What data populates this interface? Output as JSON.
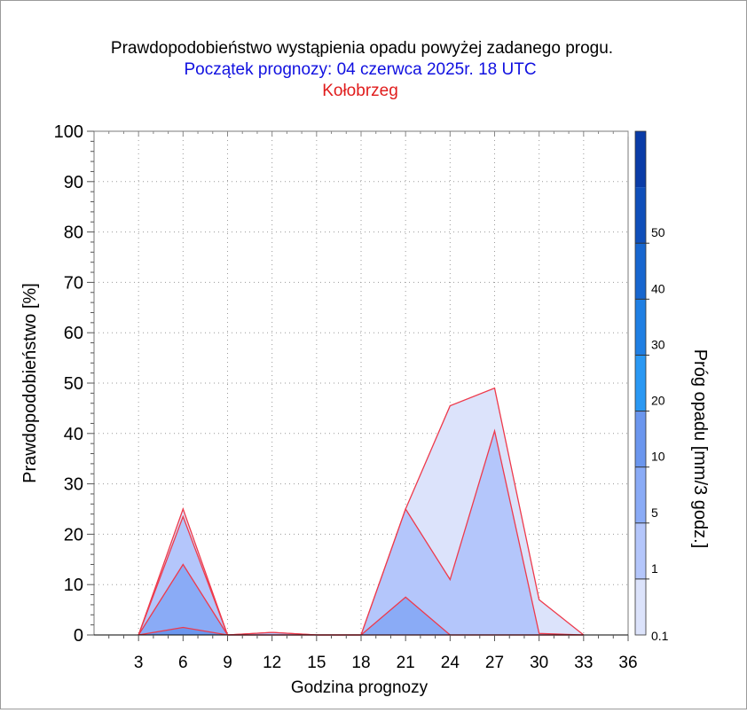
{
  "titles": {
    "line1": "Prawdopodobieństwo wystąpienia opadu powyżej zadanego progu.",
    "line2": "Początek prognozy: 04 czerwca 2025r. 18 UTC",
    "line3": "Kołobrzeg"
  },
  "chart_data": {
    "type": "area",
    "title": "Prawdopodobieństwo wystąpienia opadu powyżej zadanego progu.",
    "subtitle": "Początek prognozy: 04 czerwca 2025r. 18 UTC",
    "location": "Kołobrzeg",
    "xlabel": "Godzina prognozy",
    "ylabel": "Prawdopodobieństwo [%]",
    "xlim": [
      0,
      36
    ],
    "ylim": [
      0,
      100
    ],
    "x_ticks": [
      3,
      6,
      9,
      12,
      15,
      18,
      21,
      24,
      27,
      30,
      33,
      36
    ],
    "y_ticks": [
      0,
      10,
      20,
      30,
      40,
      50,
      60,
      70,
      80,
      90,
      100
    ],
    "grid": true,
    "x": [
      3,
      6,
      9,
      12,
      15,
      18,
      21,
      24,
      27,
      30,
      33
    ],
    "series": [
      {
        "threshold": 0.1,
        "color": "#dce3fb",
        "values": [
          0,
          25,
          0,
          0.5,
          0,
          0,
          25,
          45.5,
          49,
          7,
          0
        ]
      },
      {
        "threshold": 1,
        "color": "#b4c6fb",
        "values": [
          0,
          23.5,
          0,
          0.5,
          0,
          0,
          25,
          11,
          40.5,
          0.3,
          0
        ]
      },
      {
        "threshold": 5,
        "color": "#8aabf6",
        "values": [
          0,
          14,
          0,
          0,
          0,
          0,
          7.5,
          0,
          0,
          0,
          0
        ]
      },
      {
        "threshold": 10,
        "color": "#6b96ee",
        "values": [
          0,
          1.5,
          0,
          0,
          0,
          0,
          0,
          0,
          0,
          0,
          0
        ]
      }
    ],
    "colorbar": {
      "label": "Próg opadu [mm/3 godz.]",
      "tick_labels": [
        "0.1",
        "1",
        "5",
        "10",
        "20",
        "30",
        "40",
        "50"
      ],
      "colors": [
        "#dce3fb",
        "#b4c6fb",
        "#8aabf6",
        "#6b96ee",
        "#2a98f3",
        "#1f7fe3",
        "#1766cf",
        "#0f4fba",
        "#0a3ca7"
      ]
    }
  }
}
